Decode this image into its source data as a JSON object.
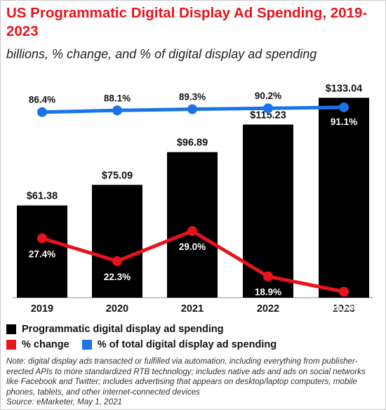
{
  "chart_data": {
    "type": "bar",
    "title": "US Programmatic Digital Display Ad Spending, 2019-2023",
    "subtitle": "billions, % change, and % of digital display ad spending",
    "categories": [
      "2019",
      "2020",
      "2021",
      "2022",
      "2023"
    ],
    "series": [
      {
        "name": "Programmatic digital display ad spending",
        "type": "bar",
        "color": "#000000",
        "values": [
          61.38,
          75.09,
          96.89,
          115.23,
          133.04
        ],
        "labels": [
          "$61.38",
          "$75.09",
          "$96.89",
          "$115.23",
          "$133.04"
        ]
      },
      {
        "name": "% change",
        "type": "line",
        "color": "#e8141b",
        "values": [
          27.4,
          22.3,
          29.0,
          18.9,
          15.5
        ],
        "labels": [
          "27.4%",
          "22.3%",
          "29.0%",
          "18.9%",
          "15.5%"
        ]
      },
      {
        "name": "% of total digital display ad spending",
        "type": "line",
        "color": "#1a73e8",
        "values": [
          86.4,
          88.1,
          89.3,
          90.2,
          91.1
        ],
        "labels": [
          "86.4%",
          "88.1%",
          "89.3%",
          "90.2%",
          "91.1%"
        ]
      }
    ],
    "note": "Note: digital display ads transacted or fulfilled via automation, including everything from publisher-erected APIs to more standardized RTB technology; includes native ads and ads on social networks like Facebook and Twitter; includes advertising that appears on desktop/laptop computers, mobile phones, tablets, and other internet-connected devices",
    "source": "Source: eMarketer, May 1, 2021"
  }
}
